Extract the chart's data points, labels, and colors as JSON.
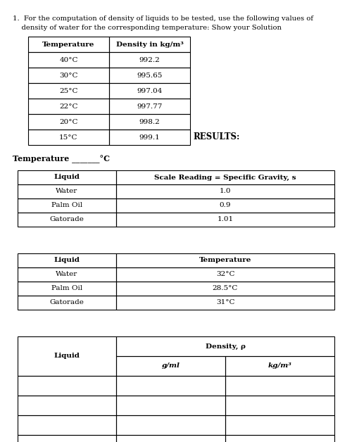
{
  "intro_line1": "1.  For the computation of density of liquids to be tested, use the following values of",
  "intro_line2": "    density of water for the corresponding temperature: Show your Solution",
  "table1_headers": [
    "Temperature",
    "Density in kg/m³"
  ],
  "table1_rows": [
    [
      "40°C",
      "992.2"
    ],
    [
      "30°C",
      "995.65"
    ],
    [
      "25°C",
      "997.04"
    ],
    [
      "22°C",
      "997.77"
    ],
    [
      "20°C",
      "998.2"
    ],
    [
      "15°C",
      "999.1"
    ]
  ],
  "results_label": "RESULTS:",
  "temp_label": "Temperature _______°C",
  "table2_headers": [
    "Liquid",
    "Scale Reading = Specific Gravity, s"
  ],
  "table2_rows": [
    [
      "Water",
      "1.0"
    ],
    [
      "Palm Oil",
      "0.9"
    ],
    [
      "Gatorade",
      "1.01"
    ]
  ],
  "table3_headers": [
    "Liquid",
    "Temperature"
  ],
  "table3_rows": [
    [
      "Water",
      "32°C"
    ],
    [
      "Palm Oil",
      "28.5°C"
    ],
    [
      "Gatorade",
      "31°C"
    ]
  ],
  "table4_col1_header": "Liquid",
  "table4_col2_header": "Density, ρ",
  "table4_subcol1": "g/ml",
  "table4_subcol2": "kg/m³",
  "table4_empty_rows": 4,
  "bg_color": "#ffffff",
  "text_color": "#000000"
}
